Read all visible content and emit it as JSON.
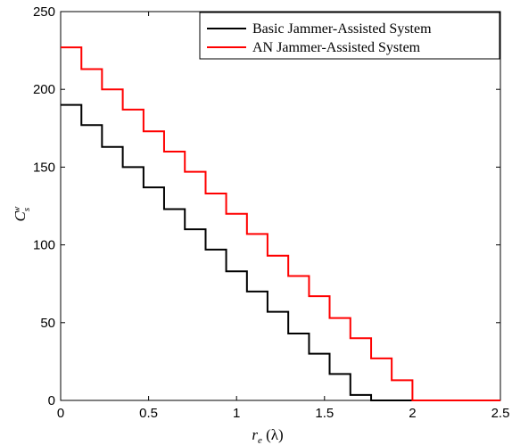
{
  "chart_data": {
    "type": "line",
    "step": true,
    "xlabel": "r_e (λ)",
    "ylabel": "C_s^w",
    "xlim": [
      0,
      2.5
    ],
    "ylim": [
      0,
      250
    ],
    "xticks": [
      0,
      0.5,
      1,
      1.5,
      2,
      2.5
    ],
    "yticks": [
      0,
      50,
      100,
      150,
      200,
      250
    ],
    "xtick_labels": [
      "0",
      "0.5",
      "1",
      "1.5",
      "2",
      "2.5"
    ],
    "ytick_labels": [
      "0",
      "50",
      "100",
      "150",
      "200",
      "250"
    ],
    "grid": false,
    "legend_position": "top-right",
    "series": [
      {
        "name": "Basic Jammer-Assisted System",
        "color": "#000000",
        "x": [
          0,
          0.118,
          0.235,
          0.353,
          0.471,
          0.588,
          0.706,
          0.824,
          0.941,
          1.059,
          1.176,
          1.294,
          1.412,
          1.529,
          1.647,
          1.765,
          2.5
        ],
        "y": [
          190,
          177,
          163,
          150,
          137,
          123,
          110,
          97,
          83,
          70,
          57,
          43,
          30,
          17,
          3.5,
          0,
          0
        ]
      },
      {
        "name": "AN Jammer-Assisted System",
        "color": "#ff0000",
        "x": [
          0,
          0.118,
          0.235,
          0.353,
          0.471,
          0.588,
          0.706,
          0.824,
          0.941,
          1.059,
          1.176,
          1.294,
          1.412,
          1.529,
          1.647,
          1.765,
          1.882,
          2.0,
          2.5
        ],
        "y": [
          227,
          213,
          200,
          187,
          173,
          160,
          147,
          133,
          120,
          107,
          93,
          80,
          67,
          53,
          40,
          27,
          13,
          0,
          0
        ]
      }
    ]
  }
}
